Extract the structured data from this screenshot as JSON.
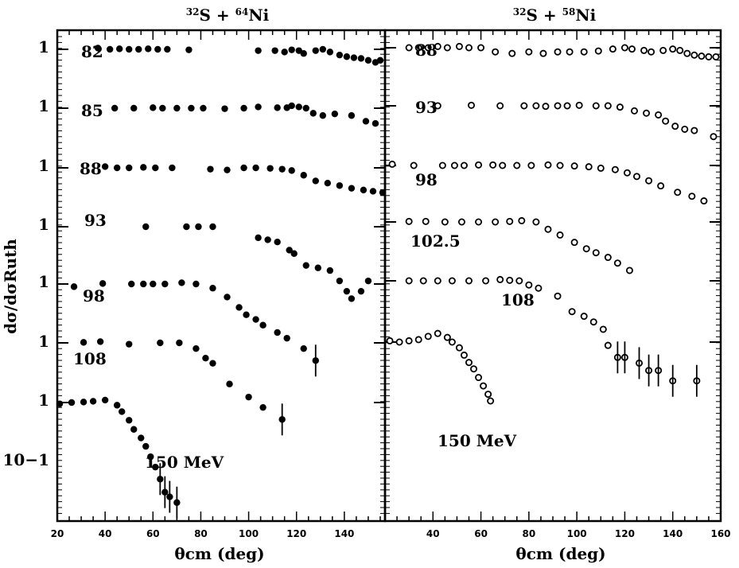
{
  "chart_data": [
    {
      "type": "scatter",
      "title_parts": [
        "32",
        "S + ",
        "64",
        "Ni"
      ],
      "xlabel": "θcm (deg)",
      "ylabel": "dσ/dσRuth",
      "xlim": [
        20,
        157
      ],
      "xticks": [
        "20",
        "40",
        "60",
        "80",
        "100",
        "120",
        "140"
      ],
      "ytick_labels": [
        "1",
        "1",
        "1",
        "1",
        "1",
        "1",
        "1",
        "10−1"
      ],
      "marker": "filled",
      "series": [
        {
          "name": "82",
          "points": [
            [
              37,
              1.05
            ],
            [
              42,
              1.0
            ],
            [
              46,
              1.02
            ],
            [
              50,
              1.0
            ],
            [
              54,
              1.0
            ],
            [
              58,
              1.02
            ],
            [
              62,
              1.0
            ],
            [
              66,
              1.0
            ],
            [
              75,
              0.98
            ],
            [
              104,
              0.95
            ],
            [
              111,
              0.95
            ],
            [
              115,
              0.9
            ],
            [
              118,
              0.98
            ],
            [
              121,
              0.95
            ],
            [
              123,
              0.85
            ],
            [
              128,
              0.95
            ],
            [
              131,
              1.0
            ],
            [
              134,
              0.9
            ],
            [
              138,
              0.8
            ],
            [
              141,
              0.75
            ],
            [
              144,
              0.72
            ],
            [
              147,
              0.7
            ],
            [
              150,
              0.65
            ],
            [
              153,
              0.6
            ],
            [
              155,
              0.65
            ]
          ]
        },
        {
          "name": "85",
          "points": [
            [
              44,
              1.0
            ],
            [
              52,
              1.0
            ],
            [
              60,
              1.02
            ],
            [
              64,
              1.0
            ],
            [
              70,
              1.0
            ],
            [
              76,
              1.0
            ],
            [
              81,
              1.0
            ],
            [
              90,
              0.98
            ],
            [
              98,
              1.0
            ],
            [
              104,
              1.05
            ],
            [
              112,
              1.02
            ],
            [
              116,
              1.02
            ],
            [
              118,
              1.1
            ],
            [
              121,
              1.05
            ],
            [
              124,
              1.0
            ],
            [
              127,
              0.82
            ],
            [
              131,
              0.75
            ],
            [
              136,
              0.8
            ],
            [
              143,
              0.75
            ],
            [
              149,
              0.6
            ],
            [
              153,
              0.55
            ]
          ]
        },
        {
          "name": "88",
          "points": [
            [
              40,
              1.05
            ],
            [
              45,
              1.0
            ],
            [
              50,
              1.0
            ],
            [
              56,
              1.02
            ],
            [
              61,
              1.0
            ],
            [
              68,
              1.0
            ],
            [
              84,
              0.95
            ],
            [
              91,
              0.92
            ],
            [
              98,
              1.0
            ],
            [
              103,
              1.0
            ],
            [
              109,
              0.98
            ],
            [
              114,
              0.95
            ],
            [
              118,
              0.9
            ],
            [
              123,
              0.75
            ],
            [
              128,
              0.6
            ],
            [
              133,
              0.55
            ],
            [
              138,
              0.5
            ],
            [
              143,
              0.45
            ],
            [
              148,
              0.42
            ],
            [
              152,
              0.4
            ],
            [
              156,
              0.38
            ]
          ]
        },
        {
          "name": "93",
          "points": [
            [
              57,
              1.0
            ],
            [
              74,
              1.0
            ],
            [
              79,
              1.0
            ],
            [
              85,
              1.0
            ],
            [
              104,
              0.65
            ],
            [
              108,
              0.6
            ],
            [
              112,
              0.55
            ],
            [
              117,
              0.4
            ],
            [
              119,
              0.35
            ],
            [
              124,
              0.22
            ],
            [
              129,
              0.2
            ],
            [
              134,
              0.18
            ],
            [
              138,
              0.12
            ],
            [
              141,
              0.08
            ],
            [
              143,
              0.06
            ],
            [
              147,
              0.08
            ],
            [
              150,
              0.12
            ]
          ]
        },
        {
          "name": "98",
          "points": [
            [
              27,
              0.9
            ],
            [
              39,
              1.02
            ],
            [
              51,
              1.0
            ],
            [
              56,
              1.0
            ],
            [
              60,
              1.0
            ],
            [
              65,
              1.0
            ],
            [
              72,
              1.05
            ],
            [
              78,
              1.0
            ],
            [
              85,
              0.85
            ],
            [
              91,
              0.6
            ],
            [
              96,
              0.4
            ],
            [
              99,
              0.3
            ],
            [
              103,
              0.25
            ],
            [
              106,
              0.2
            ],
            [
              112,
              0.15
            ],
            [
              116,
              0.12
            ],
            [
              123,
              0.08
            ],
            [
              128,
              0.05
            ]
          ]
        },
        {
          "name": "108",
          "points": [
            [
              31,
              1.02
            ],
            [
              38,
              1.05
            ],
            [
              50,
              0.95
            ],
            [
              63,
              1.0
            ],
            [
              71,
              1.0
            ],
            [
              78,
              0.8
            ],
            [
              82,
              0.55
            ],
            [
              85,
              0.45
            ],
            [
              92,
              0.2
            ],
            [
              100,
              0.12
            ],
            [
              106,
              0.08
            ],
            [
              114,
              0.05
            ]
          ]
        },
        {
          "name": "150 MeV",
          "points": [
            [
              21,
              0.95
            ],
            [
              26,
              1.0
            ],
            [
              31,
              1.02
            ],
            [
              35,
              1.05
            ],
            [
              40,
              1.1
            ],
            [
              45,
              0.9
            ],
            [
              47,
              0.7
            ],
            [
              50,
              0.5
            ],
            [
              52,
              0.35
            ],
            [
              55,
              0.25
            ],
            [
              57,
              0.18
            ],
            [
              59,
              0.12
            ],
            [
              61,
              0.08
            ],
            [
              63,
              0.05
            ],
            [
              65,
              0.03
            ],
            [
              67,
              0.025
            ],
            [
              70,
              0.02
            ]
          ]
        }
      ]
    },
    {
      "type": "scatter",
      "title_parts": [
        "32",
        "S + ",
        "58",
        "Ni"
      ],
      "xlabel": "θcm (deg)",
      "ylabel": "",
      "xlim": [
        20,
        160
      ],
      "xticks": [
        "40",
        "60",
        "80",
        "100",
        "120",
        "140",
        "160"
      ],
      "marker": "open",
      "series": [
        {
          "name": "88",
          "points": [
            [
              30,
              1.0
            ],
            [
              34,
              1.0
            ],
            [
              38,
              1.0
            ],
            [
              42,
              1.05
            ],
            [
              46,
              1.0
            ],
            [
              51,
              1.05
            ],
            [
              55,
              1.0
            ],
            [
              60,
              1.0
            ],
            [
              66,
              0.85
            ],
            [
              73,
              0.8
            ],
            [
              80,
              0.85
            ],
            [
              86,
              0.8
            ],
            [
              92,
              0.85
            ],
            [
              97,
              0.85
            ],
            [
              103,
              0.85
            ],
            [
              109,
              0.88
            ],
            [
              115,
              0.95
            ],
            [
              120,
              1.0
            ],
            [
              123,
              0.95
            ],
            [
              128,
              0.9
            ],
            [
              131,
              0.85
            ],
            [
              136,
              0.9
            ],
            [
              140,
              0.95
            ],
            [
              143,
              0.9
            ],
            [
              146,
              0.8
            ],
            [
              149,
              0.75
            ],
            [
              152,
              0.72
            ],
            [
              155,
              0.7
            ],
            [
              158,
              0.7
            ]
          ]
        },
        {
          "name": "93",
          "points": [
            [
              42,
              1.0
            ],
            [
              56,
              1.02
            ],
            [
              68,
              1.0
            ],
            [
              78,
              1.0
            ],
            [
              83,
              1.0
            ],
            [
              87,
              0.98
            ],
            [
              92,
              1.0
            ],
            [
              96,
              1.0
            ],
            [
              101,
              1.02
            ],
            [
              108,
              1.0
            ],
            [
              113,
              1.0
            ],
            [
              118,
              0.95
            ],
            [
              124,
              0.82
            ],
            [
              129,
              0.75
            ],
            [
              134,
              0.7
            ],
            [
              137,
              0.55
            ],
            [
              141,
              0.45
            ],
            [
              145,
              0.4
            ],
            [
              149,
              0.38
            ],
            [
              157,
              0.3
            ]
          ]
        },
        {
          "name": "98",
          "points": [
            [
              23,
              1.05
            ],
            [
              32,
              1.0
            ],
            [
              44,
              1.0
            ],
            [
              49,
              1.0
            ],
            [
              53,
              1.0
            ],
            [
              59,
              1.02
            ],
            [
              65,
              1.02
            ],
            [
              69,
              1.0
            ],
            [
              75,
              1.0
            ],
            [
              81,
              1.0
            ],
            [
              88,
              1.02
            ],
            [
              93,
              1.0
            ],
            [
              99,
              0.98
            ],
            [
              105,
              0.95
            ],
            [
              110,
              0.9
            ],
            [
              116,
              0.85
            ],
            [
              121,
              0.75
            ],
            [
              125,
              0.65
            ],
            [
              130,
              0.55
            ],
            [
              135,
              0.45
            ],
            [
              142,
              0.35
            ],
            [
              148,
              0.3
            ],
            [
              153,
              0.25
            ]
          ]
        },
        {
          "name": "102.5",
          "points": [
            [
              30,
              1.02
            ],
            [
              37,
              1.02
            ],
            [
              45,
              1.0
            ],
            [
              52,
              1.0
            ],
            [
              59,
              1.0
            ],
            [
              66,
              1.0
            ],
            [
              72,
              1.02
            ],
            [
              77,
              1.05
            ],
            [
              83,
              1.0
            ],
            [
              88,
              0.75
            ],
            [
              93,
              0.6
            ],
            [
              99,
              0.45
            ],
            [
              104,
              0.35
            ],
            [
              108,
              0.3
            ],
            [
              113,
              0.25
            ],
            [
              117,
              0.2
            ],
            [
              122,
              0.15
            ]
          ]
        },
        {
          "name": "108",
          "points": [
            [
              30,
              1.0
            ],
            [
              36,
              1.0
            ],
            [
              42,
              1.0
            ],
            [
              48,
              1.0
            ],
            [
              55,
              1.0
            ],
            [
              62,
              1.0
            ],
            [
              68,
              1.05
            ],
            [
              72,
              1.02
            ],
            [
              76,
              1.0
            ],
            [
              80,
              0.85
            ],
            [
              84,
              0.75
            ],
            [
              92,
              0.55
            ],
            [
              98,
              0.3
            ],
            [
              103,
              0.25
            ],
            [
              107,
              0.2
            ],
            [
              111,
              0.15
            ],
            [
              113,
              0.08
            ],
            [
              117,
              0.05
            ],
            [
              120,
              0.05
            ],
            [
              126,
              0.04
            ],
            [
              130,
              0.03
            ],
            [
              134,
              0.03
            ],
            [
              140,
              0.02
            ],
            [
              150,
              0.02
            ]
          ]
        },
        {
          "name": "150 MeV",
          "points": [
            [
              22,
              1.05
            ],
            [
              26,
              1.0
            ],
            [
              30,
              1.05
            ],
            [
              34,
              1.1
            ],
            [
              38,
              1.25
            ],
            [
              42,
              1.4
            ],
            [
              46,
              1.2
            ],
            [
              48,
              1.0
            ],
            [
              51,
              0.8
            ],
            [
              53,
              0.6
            ],
            [
              55,
              0.45
            ],
            [
              57,
              0.35
            ],
            [
              59,
              0.25
            ],
            [
              61,
              0.18
            ],
            [
              63,
              0.13
            ],
            [
              64,
              0.1
            ]
          ]
        }
      ]
    }
  ]
}
